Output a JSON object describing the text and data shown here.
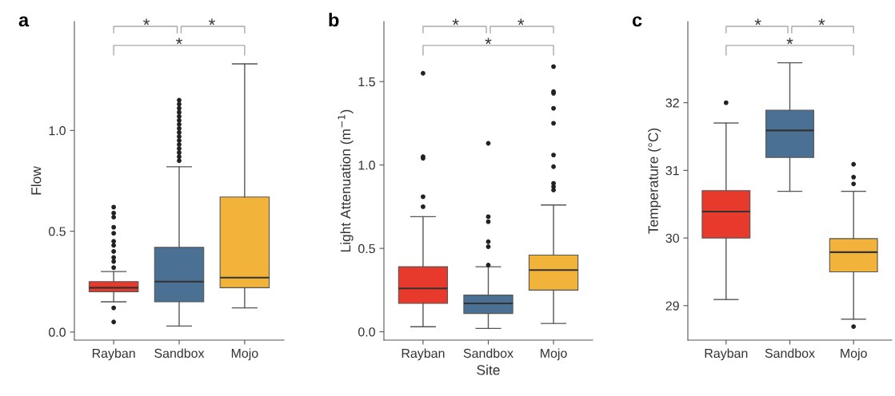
{
  "chart_data": [
    {
      "type": "box",
      "title": "a",
      "ylabel": "Flow",
      "categories": [
        "Rayban",
        "Sandbox",
        "Mojo"
      ],
      "colors": [
        "#e8392d",
        "#4a7093",
        "#f2b33a"
      ],
      "ylim": [
        -0.04,
        1.54
      ],
      "yticks": [
        {
          "value": 0,
          "label": "0.0"
        },
        {
          "value": 0.5,
          "label": "0.5"
        },
        {
          "value": 1,
          "label": "1.0"
        }
      ],
      "grid": false,
      "annotations": [
        "*",
        "*",
        "*"
      ],
      "boxes": [
        {
          "low": 0.15,
          "q1": 0.2,
          "median": 0.22,
          "q3": 0.25,
          "high": 0.3,
          "outliers": [
            0.62,
            0.59,
            0.57,
            0.52,
            0.49,
            0.45,
            0.43,
            0.4,
            0.37,
            0.35,
            0.32,
            0.12,
            0.05
          ]
        },
        {
          "low": 0.03,
          "q1": 0.15,
          "median": 0.25,
          "q3": 0.42,
          "high": 0.82,
          "outliers": [
            0.85,
            0.87,
            0.89,
            0.91,
            0.93,
            0.95,
            0.97,
            0.99,
            1.01,
            1.03,
            1.05,
            1.07,
            1.09,
            1.11,
            1.13,
            1.15
          ]
        },
        {
          "low": 0.12,
          "q1": 0.22,
          "median": 0.27,
          "q3": 0.67,
          "high": 1.33
        }
      ]
    },
    {
      "type": "box",
      "title": "b",
      "xlabel": "Site",
      "ylabel": "Light Attenuation (m$^{−1}$)",
      "categories": [
        "Rayban",
        "Sandbox",
        "Mojo"
      ],
      "colors": [
        "#e8392d",
        "#4a7093",
        "#f2b33a"
      ],
      "ylim": [
        -0.05,
        1.86
      ],
      "yticks": [
        {
          "value": 0,
          "label": "0.0"
        },
        {
          "value": 0.5,
          "label": "0.5"
        },
        {
          "value": 1,
          "label": "1.0"
        },
        {
          "value": 1.5,
          "label": "1.5"
        }
      ],
      "grid": false,
      "annotations": [
        "*",
        "*",
        "*"
      ],
      "boxes": [
        {
          "low": 0.03,
          "q1": 0.17,
          "median": 0.26,
          "q3": 0.39,
          "high": 0.69,
          "outliers": [
            0.75,
            0.81,
            1.04,
            1.05,
            1.55
          ]
        },
        {
          "low": 0.02,
          "q1": 0.11,
          "median": 0.17,
          "q3": 0.22,
          "high": 0.39,
          "outliers": [
            0.4,
            0.51,
            0.54,
            0.66,
            0.69,
            1.13
          ]
        },
        {
          "low": 0.05,
          "q1": 0.25,
          "median": 0.37,
          "q3": 0.46,
          "high": 0.76,
          "outliers": [
            0.85,
            0.87,
            0.89,
            0.99,
            1.06,
            1.25,
            1.34,
            1.43,
            1.44,
            1.59
          ]
        }
      ]
    },
    {
      "type": "box",
      "title": "c",
      "ylabel": "Temperature (°C)",
      "categories": [
        "Rayban",
        "Sandbox",
        "Mojo"
      ],
      "colors": [
        "#e8392d",
        "#4a7093",
        "#f2b33a"
      ],
      "ylim": [
        28.49,
        33.2
      ],
      "yticks": [
        29,
        30,
        31,
        32
      ],
      "grid": false,
      "annotations": [
        "*",
        "*",
        "*"
      ],
      "boxes": [
        {
          "low": 29.09,
          "q1": 30.0,
          "median": 30.39,
          "q3": 30.7,
          "high": 31.7,
          "outliers": [
            32.0
          ]
        },
        {
          "low": 30.69,
          "q1": 31.19,
          "median": 31.59,
          "q3": 31.89,
          "high": 32.59
        },
        {
          "low": 28.8,
          "q1": 29.5,
          "median": 29.79,
          "q3": 29.99,
          "high": 30.69,
          "outliers": [
            31.09,
            30.9,
            30.8,
            28.69
          ]
        }
      ]
    }
  ]
}
